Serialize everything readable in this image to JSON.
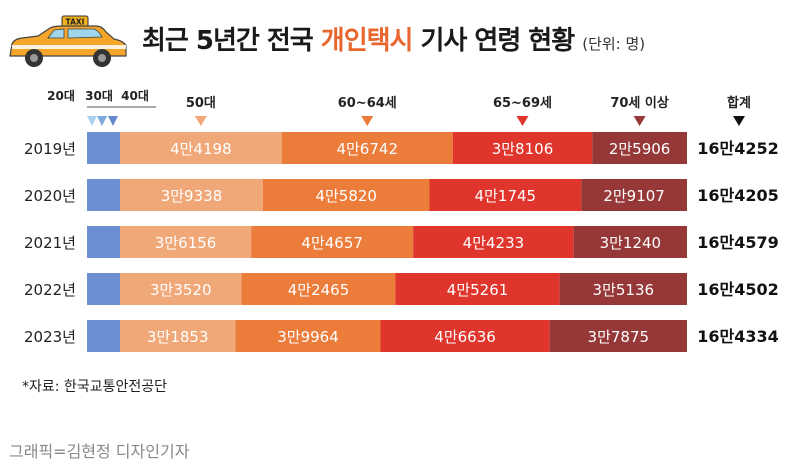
{
  "header": {
    "title_before": "최근 5년간 전국 ",
    "title_highlight": "개인택시",
    "title_after": " 기사 연령 현황",
    "unit": "(단위: 명)",
    "taxi_sign": "TAXI"
  },
  "chart_data": {
    "type": "bar",
    "orientation": "horizontal",
    "stacked": true,
    "title": "최근 5년간 전국 개인택시 기사 연령 현황",
    "unit": "단위: 명",
    "categories": [
      "2019년",
      "2020년",
      "2021년",
      "2022년",
      "2023년"
    ],
    "series": [
      {
        "name": "20대",
        "color": "#a8d2ee",
        "values": [
          null,
          null,
          null,
          null,
          null
        ],
        "labels": [
          "",
          "",
          "",
          "",
          ""
        ]
      },
      {
        "name": "30대",
        "color": "#7fa8dc",
        "values": [
          null,
          null,
          null,
          null,
          null
        ],
        "labels": [
          "",
          "",
          "",
          "",
          ""
        ]
      },
      {
        "name": "40대",
        "color": "#6688cc",
        "values": [
          null,
          null,
          null,
          null,
          null
        ],
        "labels": [
          "",
          "",
          "",
          "",
          ""
        ]
      },
      {
        "name": "50대",
        "color": "#f0a878",
        "values": [
          44198,
          39338,
          36156,
          33520,
          31853
        ],
        "labels": [
          "4만4198",
          "3만9338",
          "3만6156",
          "3만3520",
          "3만1853"
        ]
      },
      {
        "name": "60~64세",
        "color": "#ec7c3a",
        "values": [
          46742,
          45820,
          44657,
          42465,
          39964
        ],
        "labels": [
          "4만6742",
          "4만5820",
          "4만4657",
          "4만2465",
          "3만9964"
        ]
      },
      {
        "name": "65~69세",
        "color": "#e0352c",
        "values": [
          38106,
          41745,
          44233,
          45261,
          46636
        ],
        "labels": [
          "3만8106",
          "4만1745",
          "4만4233",
          "4만5261",
          "4만6636"
        ]
      },
      {
        "name": "70세 이상",
        "color": "#963838",
        "values": [
          25906,
          29107,
          31240,
          35136,
          37875
        ],
        "labels": [
          "2만5906",
          "2만9107",
          "3만1240",
          "3만5136",
          "3만7875"
        ]
      }
    ],
    "total_label": "합계",
    "totals": [
      "16만4252",
      "16만4205",
      "16만4579",
      "16만4502",
      "16만4334"
    ],
    "xlabel": "",
    "ylabel": "",
    "grid": false,
    "legend": "top"
  },
  "footer": {
    "source": "*자료: 한국교통안전공단",
    "credit": "그래픽=김현정 디자인기자"
  }
}
